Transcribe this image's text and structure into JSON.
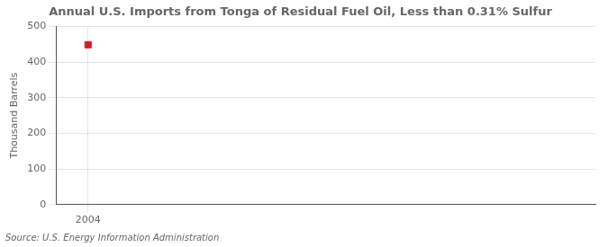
{
  "chart_data": {
    "type": "scatter",
    "title": "Annual U.S. Imports from Tonga of Residual Fuel Oil, Less than 0.31% Sulfur",
    "y_label": "Thousand Barrels",
    "annotation": "Source: U.S. Energy Information Administration",
    "x": [
      2004
    ],
    "values": [
      449
    ],
    "color": "#cc2222",
    "marker": "square",
    "xlim": [
      2003.4,
      2013.5
    ],
    "xticks": [
      2004
    ],
    "ylim": [
      0,
      500
    ],
    "yticks": [
      0,
      100,
      200,
      300,
      400,
      500
    ],
    "grid": true
  }
}
